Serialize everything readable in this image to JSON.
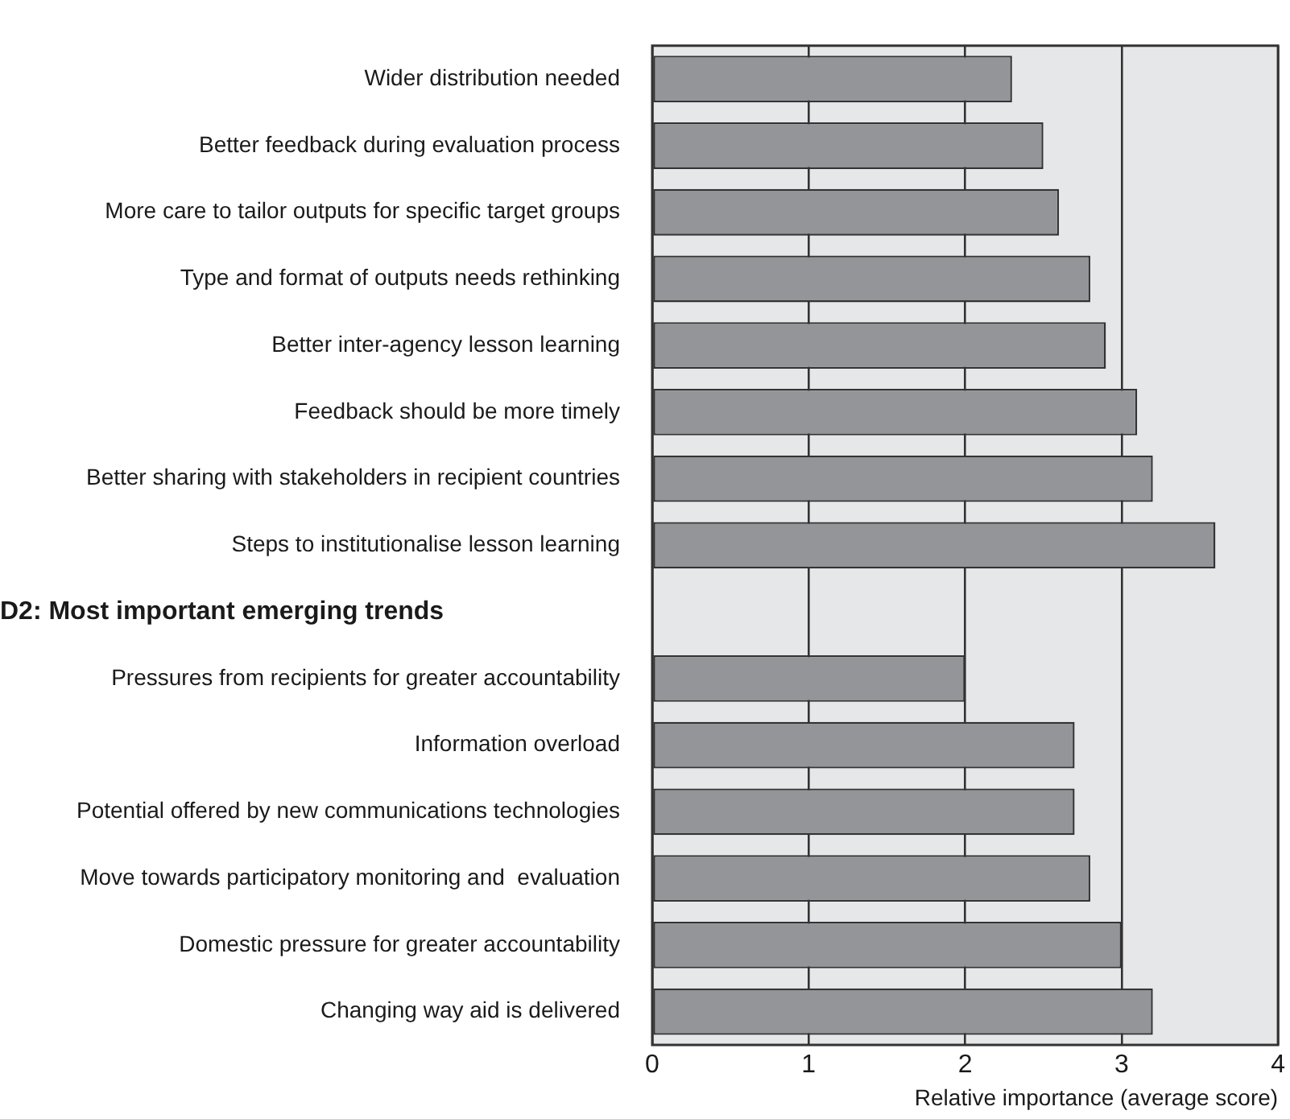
{
  "chart_data": {
    "type": "bar",
    "orientation": "horizontal",
    "xlabel": "Relative importance (average score)",
    "categories": [
      "Wider distribution needed",
      "Better feedback during evaluation process",
      "More care to tailor outputs for specific target groups",
      "Type and format of outputs needs rethinking",
      "Better inter-agency lesson learning",
      "Feedback should be more timely",
      "Better sharing with stakeholders in recipient countries",
      "Steps to institutionalise lesson learning",
      null,
      "Pressures from recipients for greater accountability",
      "Information overload",
      "Potential offered by new communications technologies",
      "Move towards participatory monitoring and  evaluation",
      "Domestic pressure for greater accountability",
      "Changing way aid is delivered"
    ],
    "values": [
      2.3,
      2.5,
      2.6,
      2.8,
      2.9,
      3.1,
      3.2,
      3.6,
      null,
      2.0,
      2.7,
      2.7,
      2.8,
      3.0,
      3.2
    ],
    "color": "#939598",
    "xlim": [
      0,
      4
    ],
    "xticks": [
      0,
      1,
      2,
      3,
      4
    ],
    "grid": "x",
    "legend": false,
    "annotations": [
      "D2: Most important emerging trends"
    ]
  }
}
